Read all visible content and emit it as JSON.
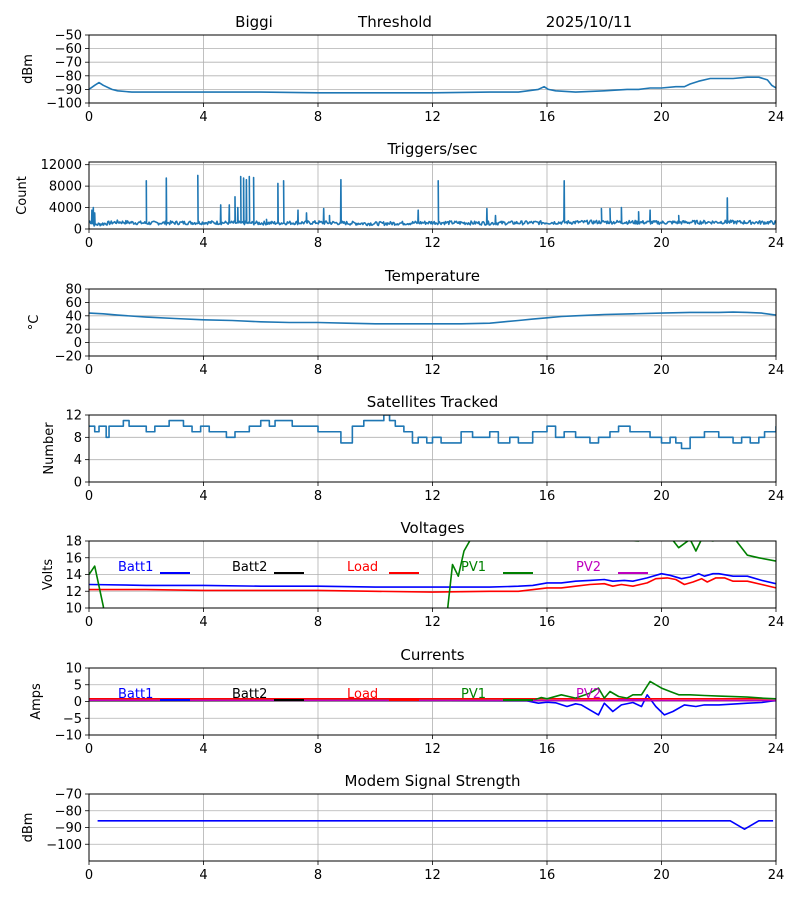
{
  "header": {
    "station": "Biggi",
    "mode": "Threshold",
    "date": "2025/10/11"
  },
  "chart_data": [
    {
      "type": "line",
      "key": "threshold",
      "title": "",
      "xlabel": "",
      "ylabel": "dBm",
      "xlim": [
        0,
        24
      ],
      "ylim": [
        -100,
        -50
      ],
      "xticks": [
        "0",
        "4",
        "8",
        "12",
        "16",
        "20",
        "24"
      ],
      "yticks": [
        -100,
        -90,
        -80,
        -70,
        -60,
        -50
      ],
      "ytick_labels": [
        "−100",
        "−90",
        "−80",
        "−70",
        "−60",
        "−50"
      ],
      "series": [
        {
          "name": "threshold",
          "color": "#1f77b4",
          "x": [
            0,
            0.2,
            0.35,
            0.5,
            0.8,
            1,
            1.5,
            2,
            3,
            4,
            6,
            8,
            10,
            12,
            14,
            15,
            15.7,
            15.9,
            16.05,
            16.3,
            17,
            18,
            18.8,
            19.2,
            19.6,
            20,
            20.5,
            20.8,
            21,
            21.3,
            21.7,
            22,
            22.5,
            23,
            23.4,
            23.7,
            23.85,
            24
          ],
          "y": [
            -90,
            -87,
            -85,
            -87,
            -90,
            -91,
            -92,
            -92,
            -92,
            -92,
            -92,
            -92.5,
            -92.5,
            -92.5,
            -92,
            -92,
            -90,
            -88,
            -90,
            -91,
            -92,
            -91,
            -90,
            -90,
            -89,
            -89,
            -88,
            -88,
            -86,
            -84,
            -82,
            -82,
            -82,
            -81,
            -81,
            -83,
            -87,
            -89
          ]
        }
      ]
    },
    {
      "type": "line",
      "key": "triggers",
      "title": "Triggers/sec",
      "xlabel": "",
      "ylabel": "Count",
      "xlim": [
        0,
        24
      ],
      "ylim": [
        0,
        12500
      ],
      "xticks": [
        "0",
        "4",
        "8",
        "12",
        "16",
        "20",
        "24"
      ],
      "yticks": [
        0,
        4000,
        8000,
        12000
      ],
      "ytick_labels": [
        "0",
        "4000",
        "8000",
        "12000"
      ],
      "series": [
        {
          "name": "triggers",
          "color": "#1f77b4",
          "baseline": [
            [
              0,
              1500
            ],
            [
              0.2,
              800
            ],
            [
              1,
              1300
            ],
            [
              2,
              1100
            ],
            [
              4,
              1200
            ],
            [
              6,
              1100
            ],
            [
              8,
              1200
            ],
            [
              10,
              1000
            ],
            [
              12,
              1200
            ],
            [
              14,
              1100
            ],
            [
              16,
              1200
            ],
            [
              18,
              1300
            ],
            [
              20,
              1200
            ],
            [
              22,
              1300
            ],
            [
              24,
              1200
            ]
          ],
          "spikes": [
            [
              0.1,
              3500
            ],
            [
              0.15,
              4000
            ],
            [
              0.2,
              3000
            ],
            [
              2,
              9000
            ],
            [
              2.7,
              9500
            ],
            [
              3.8,
              10000
            ],
            [
              4.6,
              4500
            ],
            [
              4.9,
              4500
            ],
            [
              5.1,
              6000
            ],
            [
              5.2,
              4000
            ],
            [
              5.3,
              9800
            ],
            [
              5.4,
              9500
            ],
            [
              5.5,
              9200
            ],
            [
              5.6,
              9800
            ],
            [
              5.75,
              9600
            ],
            [
              6.2,
              1800
            ],
            [
              6.6,
              8500
            ],
            [
              6.8,
              9000
            ],
            [
              7.3,
              3500
            ],
            [
              7.6,
              3000
            ],
            [
              8.2,
              3800
            ],
            [
              8.4,
              2500
            ],
            [
              8.8,
              9200
            ],
            [
              11.5,
              3500
            ],
            [
              12.2,
              9000
            ],
            [
              13.9,
              3800
            ],
            [
              14.2,
              2500
            ],
            [
              16.6,
              9000
            ],
            [
              17.9,
              3800
            ],
            [
              18.2,
              3800
            ],
            [
              18.6,
              4000
            ],
            [
              19.2,
              3200
            ],
            [
              19.6,
              3500
            ],
            [
              20.6,
              2500
            ],
            [
              22.3,
              5800
            ]
          ]
        }
      ]
    },
    {
      "type": "line",
      "key": "temperature",
      "title": "Temperature",
      "xlabel": "",
      "ylabel": "°C",
      "xlim": [
        0,
        24
      ],
      "ylim": [
        -20,
        80
      ],
      "xticks": [
        "0",
        "4",
        "8",
        "12",
        "16",
        "20",
        "24"
      ],
      "yticks": [
        -20,
        0,
        20,
        40,
        60,
        80
      ],
      "ytick_labels": [
        "−20",
        "0",
        "20",
        "40",
        "60",
        "80"
      ],
      "series": [
        {
          "name": "temperature",
          "color": "#1f77b4",
          "x": [
            0,
            0.5,
            1,
            2,
            3,
            4,
            5,
            6,
            7,
            8,
            9,
            10,
            11,
            12,
            13,
            14,
            14.5,
            15,
            15.5,
            16,
            16.5,
            17,
            18,
            19,
            20,
            21,
            22,
            22.5,
            23,
            23.5,
            24
          ],
          "y": [
            44,
            43,
            41,
            38,
            36,
            34,
            33,
            31,
            30,
            30,
            29,
            28,
            28,
            28,
            28,
            29,
            31,
            33,
            35,
            37,
            39,
            40,
            42,
            43,
            44,
            45,
            45,
            45.5,
            45,
            44,
            41
          ]
        }
      ]
    },
    {
      "type": "line",
      "key": "satellites",
      "title": "Satellites Tracked",
      "xlabel": "",
      "ylabel": "Number",
      "xlim": [
        0,
        24
      ],
      "ylim": [
        0,
        12
      ],
      "xticks": [
        "0",
        "4",
        "8",
        "12",
        "16",
        "20",
        "24"
      ],
      "yticks": [
        0,
        4,
        8,
        12
      ],
      "ytick_labels": [
        "0",
        "4",
        "8",
        "12"
      ],
      "series": [
        {
          "name": "satellites",
          "color": "#1f77b4",
          "step": true,
          "x": [
            0,
            0.2,
            0.35,
            0.6,
            0.7,
            0.9,
            1.2,
            1.4,
            1.8,
            2,
            2.3,
            2.6,
            2.8,
            3.1,
            3.3,
            3.6,
            3.9,
            4.2,
            4.8,
            5.1,
            5.6,
            5.9,
            6,
            6.3,
            6.5,
            6.9,
            7.1,
            7.5,
            8,
            8.5,
            8.8,
            9.2,
            9.6,
            10,
            10.3,
            10.5,
            10.7,
            11,
            11.3,
            11.5,
            11.8,
            12,
            12.3,
            12.5,
            13,
            13.4,
            14,
            14.3,
            14.7,
            15,
            15.5,
            16,
            16.3,
            16.6,
            17,
            17.5,
            17.8,
            18.2,
            18.5,
            18.9,
            19.2,
            19.6,
            20,
            20.3,
            20.5,
            20.7,
            21,
            21.5,
            22,
            22.5,
            22.8,
            23.1,
            23.4,
            23.6,
            23.9,
            24
          ],
          "y": [
            10,
            9,
            10,
            8,
            10,
            10,
            11,
            10,
            10,
            9,
            10,
            10,
            11,
            11,
            10,
            9,
            10,
            9,
            8,
            9,
            10,
            10,
            11,
            10,
            11,
            11,
            10,
            10,
            9,
            9,
            7,
            10,
            11,
            11,
            12,
            11,
            10,
            9,
            7,
            8,
            7,
            8,
            7,
            7,
            9,
            8,
            9,
            7,
            8,
            7,
            9,
            10,
            8,
            9,
            8,
            7,
            8,
            9,
            10,
            9,
            9,
            8,
            7,
            8,
            7,
            6,
            8,
            9,
            8,
            7,
            8,
            7,
            8,
            9,
            9,
            10
          ]
        }
      ]
    },
    {
      "type": "line",
      "key": "voltages",
      "title": "Voltages",
      "xlabel": "",
      "ylabel": "Volts",
      "xlim": [
        0,
        24
      ],
      "ylim": [
        10,
        18
      ],
      "xticks": [
        "0",
        "4",
        "8",
        "12",
        "16",
        "20",
        "24"
      ],
      "yticks": [
        10,
        12,
        14,
        16,
        18
      ],
      "ytick_labels": [
        "10",
        "12",
        "14",
        "16",
        "18"
      ],
      "legend": [
        "Batt1",
        "Batt2",
        "Load",
        "PV1",
        "PV2"
      ],
      "series": [
        {
          "name": "Batt1",
          "color": "#0000ff",
          "x": [
            0,
            2,
            4,
            6,
            8,
            10,
            12,
            14,
            15,
            15.5,
            16,
            16.5,
            17,
            17.5,
            18,
            18.3,
            18.7,
            19,
            19.5,
            20,
            20.3,
            20.7,
            21,
            21.3,
            21.5,
            21.8,
            22,
            22.5,
            23,
            23.5,
            24
          ],
          "y": [
            12.8,
            12.7,
            12.7,
            12.6,
            12.6,
            12.5,
            12.5,
            12.5,
            12.6,
            12.7,
            13,
            13,
            13.2,
            13.3,
            13.4,
            13.2,
            13.3,
            13.2,
            13.6,
            14.1,
            13.9,
            13.5,
            13.7,
            14.1,
            13.8,
            14.1,
            14.1,
            13.8,
            13.8,
            13.3,
            12.9
          ]
        },
        {
          "name": "Load",
          "color": "#ff0000",
          "x": [
            0,
            2,
            4,
            6,
            8,
            10,
            12,
            14,
            15,
            16,
            16.5,
            17,
            17.5,
            18,
            18.3,
            18.6,
            19,
            19.5,
            19.8,
            20.2,
            20.5,
            20.8,
            21.1,
            21.4,
            21.6,
            21.9,
            22.2,
            22.5,
            23,
            23.5,
            24
          ],
          "y": [
            12.2,
            12.2,
            12.1,
            12.1,
            12.1,
            12,
            11.9,
            12,
            12,
            12.4,
            12.4,
            12.6,
            12.8,
            12.9,
            12.6,
            12.8,
            12.6,
            13,
            13.5,
            13.6,
            13.4,
            12.8,
            13.1,
            13.5,
            13.1,
            13.6,
            13.6,
            13.2,
            13.2,
            12.8,
            12.4
          ]
        },
        {
          "name": "PV1",
          "color": "#008000",
          "x": [
            0,
            0.2,
            0.5,
            0.55,
            12.5,
            12.7,
            12.9,
            13.1,
            13.3,
            13.6,
            19.2,
            19.4,
            20.3,
            20.6,
            21,
            21.2,
            21.4,
            21.8,
            22,
            22.5,
            23,
            23.4,
            24
          ],
          "y": [
            14,
            15,
            10.2,
            9,
            9,
            15.2,
            13.8,
            16.8,
            18,
            19,
            18,
            18.5,
            18.5,
            17.2,
            18.2,
            16.8,
            18.2,
            18,
            19,
            18.5,
            16.3,
            16,
            15.6
          ]
        }
      ]
    },
    {
      "type": "line",
      "key": "currents",
      "title": "Currents",
      "xlabel": "",
      "ylabel": "Amps",
      "xlim": [
        0,
        24
      ],
      "ylim": [
        -10,
        10
      ],
      "xticks": [
        "0",
        "4",
        "8",
        "12",
        "16",
        "20",
        "24"
      ],
      "yticks": [
        -10,
        -5,
        0,
        5,
        10
      ],
      "ytick_labels": [
        "−10",
        "−5",
        "0",
        "5",
        "10"
      ],
      "legend": [
        "Batt1",
        "Batt2",
        "Load",
        "PV1",
        "PV2"
      ],
      "series": [
        {
          "name": "Batt1",
          "color": "#0000ff",
          "x": [
            0,
            8,
            15.3,
            15.7,
            16,
            16.3,
            16.7,
            17,
            17.2,
            17.5,
            17.8,
            18,
            18.3,
            18.6,
            19,
            19.3,
            19.5,
            19.8,
            20.1,
            20.4,
            20.8,
            21.2,
            21.5,
            22,
            23,
            23.5,
            24
          ],
          "y": [
            0.3,
            0.3,
            0.2,
            -0.5,
            -0.2,
            -0.4,
            -1.5,
            -0.7,
            -1,
            -2.5,
            -4,
            -0.5,
            -3,
            -1,
            -0.3,
            -1.5,
            2,
            -1.5,
            -4,
            -3,
            -1,
            -1.5,
            -1,
            -1,
            -0.5,
            -0.3,
            0.3
          ]
        },
        {
          "name": "Load",
          "color": "#ff0000",
          "x": [
            0,
            24
          ],
          "y": [
            0.8,
            0.8
          ]
        },
        {
          "name": "PV1",
          "color": "#008000",
          "x": [
            0,
            15.5,
            15.8,
            16,
            16.5,
            17,
            17.5,
            17.8,
            18,
            18.2,
            18.5,
            18.8,
            19,
            19.3,
            19.6,
            20,
            20.3,
            20.6,
            21,
            21.5,
            22,
            23,
            23.5,
            24
          ],
          "y": [
            0.2,
            0.3,
            1.2,
            0.8,
            2,
            1,
            2.5,
            4,
            1,
            3,
            1.5,
            1,
            2,
            2,
            6,
            4,
            3,
            2,
            2,
            1.8,
            1.6,
            1.3,
            1,
            0.8
          ]
        },
        {
          "name": "PV2",
          "color": "#bf00bf",
          "x": [
            0,
            24
          ],
          "y": [
            0.3,
            0.3
          ]
        }
      ]
    },
    {
      "type": "line",
      "key": "modem",
      "title": "Modem Signal Strength",
      "xlabel": "",
      "ylabel": "dBm",
      "xlim": [
        0,
        24
      ],
      "ylim": [
        -110,
        -70
      ],
      "xticks": [
        "0",
        "4",
        "8",
        "12",
        "16",
        "20",
        "24"
      ],
      "yticks": [
        -100,
        -90,
        -80,
        -70
      ],
      "ytick_labels": [
        "−100",
        "−90",
        "−80",
        "−70"
      ],
      "series": [
        {
          "name": "modem",
          "color": "#0000ff",
          "x": [
            0.3,
            22.4,
            22.9,
            23.4,
            23.9
          ],
          "y": [
            -86,
            -86,
            -91,
            -86,
            -86
          ]
        }
      ]
    }
  ]
}
